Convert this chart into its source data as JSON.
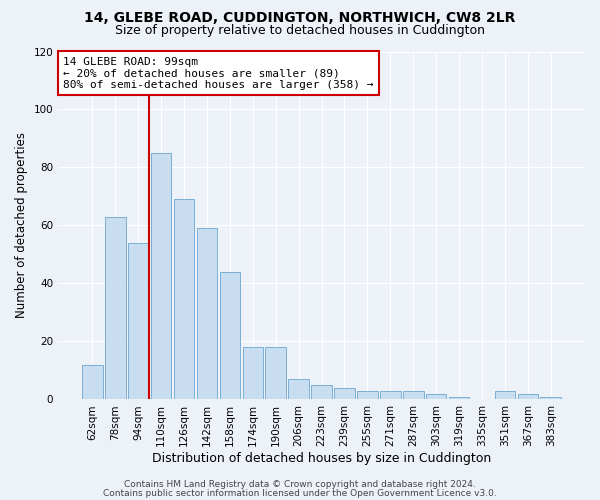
{
  "title1": "14, GLEBE ROAD, CUDDINGTON, NORTHWICH, CW8 2LR",
  "title2": "Size of property relative to detached houses in Cuddington",
  "xlabel": "Distribution of detached houses by size in Cuddington",
  "ylabel": "Number of detached properties",
  "bar_labels": [
    "62sqm",
    "78sqm",
    "94sqm",
    "110sqm",
    "126sqm",
    "142sqm",
    "158sqm",
    "174sqm",
    "190sqm",
    "206sqm",
    "223sqm",
    "239sqm",
    "255sqm",
    "271sqm",
    "287sqm",
    "303sqm",
    "319sqm",
    "335sqm",
    "351sqm",
    "367sqm",
    "383sqm"
  ],
  "bar_values": [
    12,
    63,
    54,
    85,
    69,
    59,
    44,
    18,
    18,
    7,
    5,
    4,
    3,
    3,
    3,
    2,
    1,
    0,
    3,
    2,
    1
  ],
  "bar_color": "#c9ddf0",
  "bar_edge_color": "#7aafd4",
  "vline_x_index": 2,
  "vline_color": "#cc0000",
  "annotation_text": "14 GLEBE ROAD: 99sqm\n← 20% of detached houses are smaller (89)\n80% of semi-detached houses are larger (358) →",
  "annotation_box_color": "#ffffff",
  "annotation_box_edge_color": "#cc0000",
  "ylim": [
    0,
    120
  ],
  "yticks": [
    0,
    20,
    40,
    60,
    80,
    100,
    120
  ],
  "footer1": "Contains HM Land Registry data © Crown copyright and database right 2024.",
  "footer2": "Contains public sector information licensed under the Open Government Licence v3.0.",
  "bg_color": "#edf2f9",
  "grid_color": "#ffffff",
  "title1_fontsize": 10,
  "title2_fontsize": 9,
  "xlabel_fontsize": 9,
  "ylabel_fontsize": 8.5,
  "tick_fontsize": 7.5,
  "footer_fontsize": 6.5,
  "annotation_fontsize": 8
}
